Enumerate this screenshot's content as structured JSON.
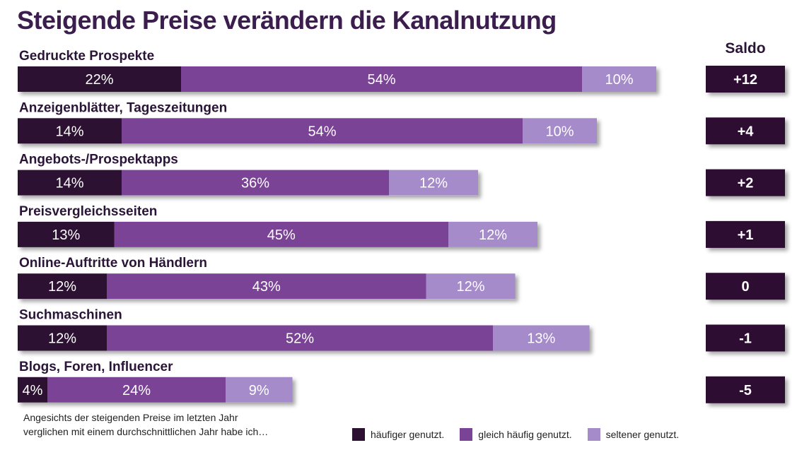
{
  "colors": {
    "more": "#2d1133",
    "same": "#7a4396",
    "less": "#a58bc9",
    "title": "#3b1d4e",
    "saldo_box": "#2d1133"
  },
  "chart_data": {
    "type": "bar",
    "orientation": "horizontal",
    "stacked": true,
    "title": "Steigende Preise verändern die Kanalnutzung",
    "saldo_header": "Saldo",
    "categories": [
      "Gedruckte Prospekte",
      "Anzeigenblätter, Tageszeitungen",
      "Angebots-/Prospektapps",
      "Preisvergleichsseiten",
      "Online-Auftritte von Händlern",
      "Suchmaschinen",
      "Blogs, Foren, Influencer"
    ],
    "series": [
      {
        "name": "häufiger genutzt.",
        "values": [
          22,
          14,
          14,
          13,
          12,
          12,
          4
        ],
        "labels": [
          "22%",
          "14%",
          "14%",
          "13%",
          "12%",
          "12%",
          "4%"
        ]
      },
      {
        "name": "gleich häufig genutzt.",
        "values": [
          54,
          54,
          36,
          45,
          43,
          52,
          24
        ],
        "labels": [
          "54%",
          "54%",
          "36%",
          "45%",
          "43%",
          "52%",
          "24%"
        ]
      },
      {
        "name": "seltener genutzt.",
        "values": [
          10,
          10,
          12,
          12,
          12,
          13,
          9
        ],
        "labels": [
          "10%",
          "10%",
          "12%",
          "12%",
          "12%",
          "13%",
          "9%"
        ]
      }
    ],
    "saldo": [
      "+12",
      "+4",
      "+2",
      "+1",
      "0",
      "-1",
      "-5"
    ],
    "note": [
      "Angesichts der steigenden Preise im letzten Jahr",
      "verglichen mit einem durchschnittlichen Jahr habe ich…"
    ]
  }
}
